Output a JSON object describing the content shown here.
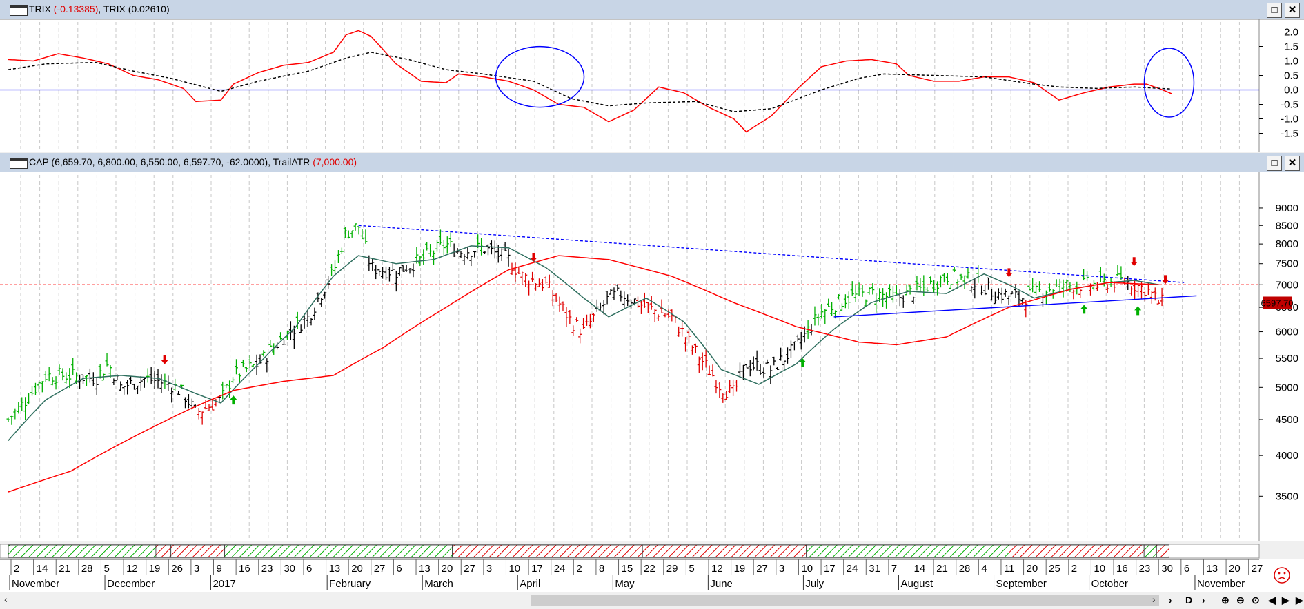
{
  "trix_panel": {
    "title_prefix": "TRIX",
    "title_value1": "(-0.13385)",
    "title_sep": ", TRIX ",
    "title_value2": "(0.02610)",
    "y_ticks": [
      "2.0",
      "1.5",
      "1.0",
      "0.5",
      "0.0",
      "-0.5",
      "-1.0",
      "-1.5"
    ]
  },
  "price_panel": {
    "title_main": "CAP (6,659.70, 6,800.00, 6,550.00, 6,597.70, -62.0000), TrailATR ",
    "title_trail": "(7,000.00)",
    "y_ticks": [
      "9000",
      "8500",
      "8000",
      "7500",
      "7000",
      "6500",
      "6000",
      "5500",
      "5000",
      "4500",
      "4000",
      "3500"
    ],
    "last_price_label": "6597.70"
  },
  "date_axis": {
    "day_labels": [
      "2",
      "14",
      "21",
      "28",
      "5",
      "12",
      "19",
      "26",
      "3",
      "9",
      "16",
      "23",
      "30",
      "6",
      "13",
      "20",
      "27",
      "6",
      "13",
      "20",
      "27",
      "3",
      "10",
      "17",
      "24",
      "2",
      "8",
      "15",
      "22",
      "29",
      "5",
      "12",
      "19",
      "27",
      "3",
      "10",
      "17",
      "24",
      "31",
      "7",
      "14",
      "21",
      "28",
      "4",
      "11",
      "20",
      "25",
      "2",
      "10",
      "16",
      "23",
      "30",
      "6",
      "13",
      "20",
      "27"
    ],
    "month_labels": [
      "November",
      "December",
      "2017",
      "February",
      "March",
      "April",
      "May",
      "June",
      "July",
      "August",
      "September",
      "October",
      "November"
    ]
  },
  "colors": {
    "up_bar": "#00b000",
    "down_bar": "#e00000",
    "neutral_bar": "#000000",
    "trix_line": "#ff0000",
    "trix_signal": "#000000",
    "ma_fast": "#2f6f5f",
    "ma_slow": "#ff0000",
    "trendline": "#0000ff",
    "trail_atr": "#ff0000",
    "bull_band": "#00b000",
    "bear_band": "#e00000"
  },
  "chart_data": [
    {
      "type": "line",
      "title": "TRIX (-0.13385), TRIX (0.02610)",
      "ylim": [
        -1.75,
        2.25
      ],
      "x_range": [
        0,
        100
      ],
      "series": [
        {
          "name": "TRIX (-0.13385)",
          "points": [
            [
              0,
              1.05
            ],
            [
              2,
              1.0
            ],
            [
              4,
              1.25
            ],
            [
              6,
              1.1
            ],
            [
              8,
              0.9
            ],
            [
              10,
              0.5
            ],
            [
              12,
              0.35
            ],
            [
              14,
              0.05
            ],
            [
              15,
              -0.4
            ],
            [
              17,
              -0.35
            ],
            [
              18,
              0.2
            ],
            [
              20,
              0.6
            ],
            [
              22,
              0.85
            ],
            [
              24,
              0.95
            ],
            [
              26,
              1.3
            ],
            [
              27,
              1.9
            ],
            [
              28,
              2.05
            ],
            [
              29,
              1.85
            ],
            [
              31,
              0.9
            ],
            [
              33,
              0.3
            ],
            [
              35,
              0.25
            ],
            [
              36,
              0.55
            ],
            [
              38,
              0.45
            ],
            [
              40,
              0.3
            ],
            [
              42,
              0.0
            ],
            [
              44,
              -0.5
            ],
            [
              46,
              -0.6
            ],
            [
              48,
              -1.1
            ],
            [
              50,
              -0.7
            ],
            [
              52,
              0.1
            ],
            [
              54,
              -0.1
            ],
            [
              56,
              -0.6
            ],
            [
              58,
              -1.0
            ],
            [
              59,
              -1.45
            ],
            [
              61,
              -0.9
            ],
            [
              63,
              0.0
            ],
            [
              65,
              0.8
            ],
            [
              67,
              1.0
            ],
            [
              69,
              1.05
            ],
            [
              71,
              0.9
            ],
            [
              72,
              0.5
            ],
            [
              74,
              0.3
            ],
            [
              76,
              0.3
            ],
            [
              78,
              0.45
            ],
            [
              80,
              0.45
            ],
            [
              82,
              0.25
            ],
            [
              84,
              -0.35
            ],
            [
              86,
              -0.1
            ],
            [
              88,
              0.1
            ],
            [
              89,
              0.15
            ],
            [
              90,
              0.2
            ],
            [
              91,
              0.2
            ],
            [
              92,
              0.05
            ],
            [
              93,
              -0.13
            ]
          ]
        },
        {
          "name": "TRIX (0.02610)",
          "points": [
            [
              0,
              0.7
            ],
            [
              3,
              0.9
            ],
            [
              7,
              0.95
            ],
            [
              10,
              0.65
            ],
            [
              13,
              0.4
            ],
            [
              17,
              -0.05
            ],
            [
              20,
              0.3
            ],
            [
              24,
              0.65
            ],
            [
              27,
              1.1
            ],
            [
              29,
              1.3
            ],
            [
              32,
              1.05
            ],
            [
              35,
              0.7
            ],
            [
              38,
              0.55
            ],
            [
              42,
              0.3
            ],
            [
              45,
              -0.3
            ],
            [
              48,
              -0.55
            ],
            [
              51,
              -0.45
            ],
            [
              55,
              -0.4
            ],
            [
              58,
              -0.75
            ],
            [
              61,
              -0.65
            ],
            [
              65,
              0.0
            ],
            [
              68,
              0.4
            ],
            [
              70,
              0.55
            ],
            [
              74,
              0.5
            ],
            [
              78,
              0.45
            ],
            [
              82,
              0.2
            ],
            [
              84,
              0.1
            ],
            [
              87,
              0.05
            ],
            [
              90,
              0.1
            ],
            [
              93,
              0.03
            ]
          ]
        }
      ],
      "reference_line": 0.0
    },
    {
      "type": "bar",
      "title": "CAP (6,659.70, 6,800.00, 6,550.00, 6,597.70, -62.0000), TrailATR (7,000.00)",
      "scale": "log",
      "ylim": [
        3200,
        9500
      ],
      "x_range": [
        0,
        100
      ],
      "last_close": 6597.7,
      "trail_atr": 7000.0,
      "price_path": [
        [
          0,
          4500
        ],
        [
          1,
          4700
        ],
        [
          3,
          5200
        ],
        [
          5,
          5200
        ],
        [
          7,
          5150
        ],
        [
          8,
          5400
        ],
        [
          9,
          5000
        ],
        [
          11,
          5150
        ],
        [
          13,
          5050
        ],
        [
          14,
          4900
        ],
        [
          15,
          4600
        ],
        [
          17,
          4800
        ],
        [
          18,
          5200
        ],
        [
          20,
          5400
        ],
        [
          22,
          5900
        ],
        [
          24,
          6300
        ],
        [
          26,
          7300
        ],
        [
          27,
          8300
        ],
        [
          28,
          8500
        ],
        [
          29,
          7400
        ],
        [
          31,
          7300
        ],
        [
          33,
          7600
        ],
        [
          35,
          8000
        ],
        [
          36,
          7800
        ],
        [
          38,
          7900
        ],
        [
          40,
          7600
        ],
        [
          41,
          7200
        ],
        [
          43,
          7000
        ],
        [
          45,
          6200
        ],
        [
          46,
          6000
        ],
        [
          48,
          6700
        ],
        [
          49,
          6800
        ],
        [
          51,
          6500
        ],
        [
          53,
          6300
        ],
        [
          55,
          5600
        ],
        [
          57,
          5000
        ],
        [
          58,
          4900
        ],
        [
          59,
          5400
        ],
        [
          61,
          5300
        ],
        [
          63,
          5700
        ],
        [
          65,
          6400
        ],
        [
          67,
          6700
        ],
        [
          69,
          6800
        ],
        [
          71,
          6700
        ],
        [
          73,
          6900
        ],
        [
          75,
          7200
        ],
        [
          77,
          7100
        ],
        [
          79,
          6800
        ],
        [
          81,
          6700
        ],
        [
          83,
          6900
        ],
        [
          85,
          7000
        ],
        [
          87,
          7000
        ],
        [
          89,
          7100
        ],
        [
          91,
          6900
        ],
        [
          92,
          6600
        ]
      ],
      "ma_fast": [
        [
          0,
          4200
        ],
        [
          3,
          4800
        ],
        [
          6,
          5150
        ],
        [
          9,
          5200
        ],
        [
          12,
          5150
        ],
        [
          15,
          4900
        ],
        [
          17,
          4750
        ],
        [
          20,
          5400
        ],
        [
          23,
          6100
        ],
        [
          26,
          7200
        ],
        [
          28,
          7700
        ],
        [
          31,
          7500
        ],
        [
          34,
          7600
        ],
        [
          37,
          7950
        ],
        [
          40,
          7900
        ],
        [
          43,
          7400
        ],
        [
          46,
          6700
        ],
        [
          48,
          6300
        ],
        [
          51,
          6700
        ],
        [
          54,
          6200
        ],
        [
          57,
          5300
        ],
        [
          60,
          5050
        ],
        [
          63,
          5400
        ],
        [
          66,
          6050
        ],
        [
          69,
          6600
        ],
        [
          72,
          6850
        ],
        [
          75,
          6800
        ],
        [
          78,
          7250
        ],
        [
          80,
          7000
        ],
        [
          82,
          6700
        ],
        [
          85,
          6900
        ],
        [
          88,
          7050
        ],
        [
          90,
          7100
        ],
        [
          92,
          7000
        ]
      ],
      "ma_slow": [
        [
          0,
          3550
        ],
        [
          5,
          3800
        ],
        [
          10,
          4250
        ],
        [
          15,
          4700
        ],
        [
          18,
          4950
        ],
        [
          22,
          5100
        ],
        [
          26,
          5200
        ],
        [
          30,
          5700
        ],
        [
          35,
          6500
        ],
        [
          40,
          7350
        ],
        [
          44,
          7700
        ],
        [
          48,
          7600
        ],
        [
          53,
          7200
        ],
        [
          58,
          6600
        ],
        [
          63,
          6100
        ],
        [
          68,
          5800
        ],
        [
          71,
          5750
        ],
        [
          75,
          5900
        ],
        [
          80,
          6500
        ],
        [
          85,
          6900
        ],
        [
          88,
          7050
        ],
        [
          92,
          7000
        ]
      ],
      "trendlines": [
        {
          "name": "resistance",
          "from": [
            28,
            8500
          ],
          "to": [
            94,
            7050
          ],
          "style": "dashed"
        },
        {
          "name": "support",
          "from": [
            66,
            6300
          ],
          "to": [
            95,
            6750
          ],
          "style": "solid"
        }
      ],
      "signals": [
        {
          "x": 12.5,
          "type": "sell"
        },
        {
          "x": 18,
          "type": "buy"
        },
        {
          "x": 42,
          "type": "sell"
        },
        {
          "x": 63.5,
          "type": "buy"
        },
        {
          "x": 80,
          "type": "sell"
        },
        {
          "x": 86,
          "type": "buy"
        },
        {
          "x": 90,
          "type": "sell"
        },
        {
          "x": 90.3,
          "type": "buy"
        },
        {
          "x": 92.5,
          "type": "sell"
        }
      ],
      "regime_bands": [
        {
          "from": 0,
          "to": 11.8,
          "state": "bull"
        },
        {
          "from": 11.8,
          "to": 13,
          "state": "bear"
        },
        {
          "from": 13,
          "to": 17.3,
          "state": "bear"
        },
        {
          "from": 17.3,
          "to": 35.5,
          "state": "bull"
        },
        {
          "from": 35.5,
          "to": 50.7,
          "state": "bear"
        },
        {
          "from": 50.7,
          "to": 63.8,
          "state": "bear"
        },
        {
          "from": 63.8,
          "to": 80,
          "state": "bull"
        },
        {
          "from": 80,
          "to": 90.8,
          "state": "bear"
        },
        {
          "from": 90.8,
          "to": 91.8,
          "state": "bull"
        },
        {
          "from": 91.8,
          "to": 92.8,
          "state": "bear"
        }
      ]
    }
  ]
}
